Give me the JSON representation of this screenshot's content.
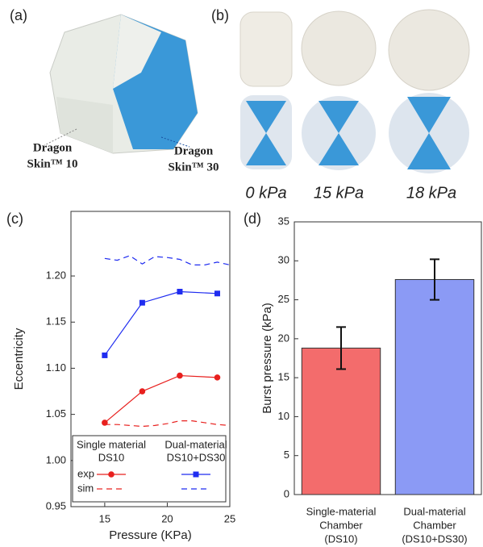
{
  "panels": {
    "a": "(a)",
    "b": "(b)",
    "c": "(c)",
    "d": "(d)"
  },
  "photo_labels": {
    "left": [
      "Dragon",
      "Skin™ 10"
    ],
    "right": [
      "Dragon",
      "Skin™ 30"
    ]
  },
  "pressure_labels": [
    "0 kPa",
    "15 kPa",
    "18 kPa"
  ],
  "chart_data": [
    {
      "type": "line",
      "xlabel": "Pressure (KPa)",
      "ylabel": "Eccentricity",
      "xlim": [
        12.3,
        25
      ],
      "xticks": [
        15,
        20,
        25
      ],
      "ylim": [
        0.95,
        1.27
      ],
      "yticks": [
        0.95,
        {
          "value": 1.0,
          "label": "1.00"
        },
        1.05,
        {
          "value": 1.1,
          "label": "1.10"
        },
        1.15,
        {
          "value": 1.2,
          "label": "1.20"
        }
      ],
      "legend": {
        "columns": [
          [
            "Single material",
            "DS10"
          ],
          [
            "Dual-material",
            "DS10+DS30"
          ]
        ],
        "rows": [
          "exp",
          "sim"
        ]
      },
      "series": [
        {
          "color": "#e8201e",
          "marker": "circle",
          "x": [
            15,
            18,
            21,
            24
          ],
          "values": [
            1.041,
            1.075,
            1.092,
            1.09
          ]
        },
        {
          "color": "#e8201e",
          "dash": true,
          "x": [
            15,
            16,
            17,
            18,
            19,
            20,
            21,
            22,
            23,
            24,
            25
          ],
          "values": [
            1.039,
            1.039,
            1.038,
            1.037,
            1.038,
            1.04,
            1.043,
            1.043,
            1.041,
            1.039,
            1.038
          ]
        },
        {
          "color": "#1f2cf0",
          "marker": "square",
          "x": [
            15,
            18,
            21,
            24
          ],
          "values": [
            1.114,
            1.171,
            1.183,
            1.181
          ]
        },
        {
          "color": "#1f2cf0",
          "dash": true,
          "x": [
            15,
            16,
            17,
            18,
            19,
            20,
            21,
            22,
            23,
            24,
            25
          ],
          "values": [
            1.219,
            1.217,
            1.222,
            1.213,
            1.221,
            1.22,
            1.218,
            1.212,
            1.212,
            1.215,
            1.212
          ]
        }
      ]
    },
    {
      "type": "bar",
      "ylabel": "Burst pressure (kPa)",
      "categories": [
        [
          "Single-material",
          "Chamber",
          "(DS10)"
        ],
        [
          "Dual-material",
          "Chamber",
          "(DS10+DS30)"
        ]
      ],
      "values": [
        18.8,
        27.6
      ],
      "errors": [
        2.7,
        2.6
      ],
      "colors": [
        "#f36c6c",
        "#8b9af5"
      ],
      "ylim": [
        0,
        35
      ],
      "yticks": [
        0,
        5,
        10,
        15,
        20,
        25,
        30,
        35
      ]
    }
  ]
}
